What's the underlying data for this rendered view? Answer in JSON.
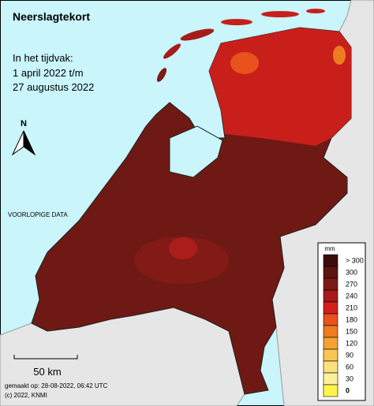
{
  "title": "Neerslagtekort",
  "period": [
    "In het tijdvak:",
    "1 april 2022 t/m",
    "27 augustus 2022"
  ],
  "north": "N",
  "status": "VOORLOPIGE DATA",
  "scale_bar": "50 km",
  "made": "gemaakt op: 28-08-2022, 06:42 UTC",
  "copyright": "(c) 2022, KNMI",
  "legend": {
    "unit": "mm",
    "items": [
      {
        "label": "> 300",
        "color": "#3a0d0d"
      },
      {
        "label": "300",
        "color": "#5c1512"
      },
      {
        "label": "270",
        "color": "#7d1a16"
      },
      {
        "label": "240",
        "color": "#a51c1a"
      },
      {
        "label": "210",
        "color": "#d3211c"
      },
      {
        "label": "180",
        "color": "#e8521c"
      },
      {
        "label": "150",
        "color": "#ef7b22"
      },
      {
        "label": "120",
        "color": "#f4a233"
      },
      {
        "label": "90",
        "color": "#f8c653"
      },
      {
        "label": "60",
        "color": "#fbe07e"
      },
      {
        "label": "30",
        "color": "#fdf09c"
      },
      {
        "label": "0",
        "color": "#fff54a"
      }
    ]
  }
}
